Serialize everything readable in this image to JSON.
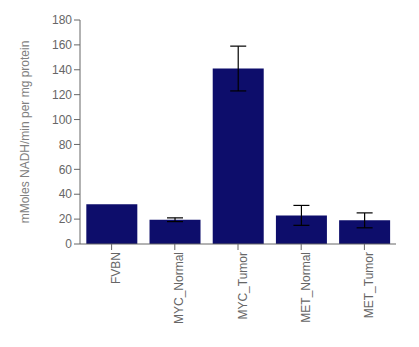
{
  "chart_data": {
    "type": "bar",
    "categories": [
      "FVBN",
      "MYC_Normal",
      "MYC_Tumor",
      "MET_Normal",
      "MET_Tumor"
    ],
    "values": [
      32,
      19.5,
      141,
      23,
      19
    ],
    "errors": [
      0,
      1.5,
      18,
      8,
      6
    ],
    "color": "#0d0d6b",
    "ylabel": "mMoles NADH/min per mg protein",
    "ylim": [
      0,
      180
    ],
    "yticks": [
      0,
      20,
      40,
      60,
      80,
      100,
      120,
      140,
      160,
      180
    ],
    "grid": false
  }
}
